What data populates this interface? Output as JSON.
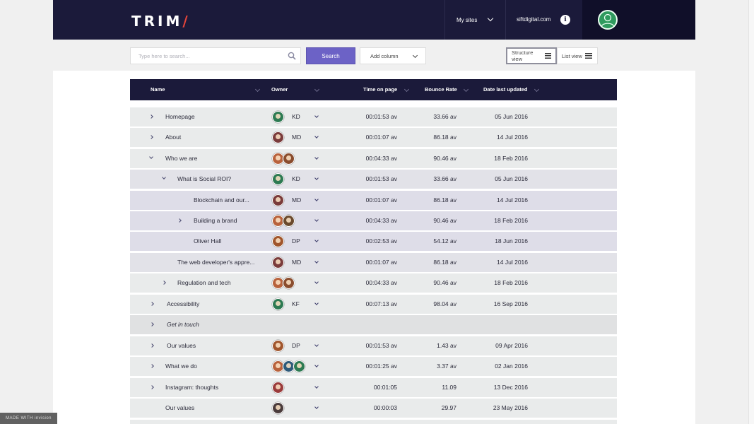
{
  "header": {
    "logo_text": "TRIM",
    "logo_slash": "/",
    "my_sites_label": "My sites",
    "site_domain": "siftdigital.com",
    "info_icon_glyph": "i"
  },
  "toolbar": {
    "search_placeholder": "Type here to search...",
    "search_button": "Search",
    "add_column_label": "Add column",
    "structure_view_label": "Structure view",
    "list_view_label": "List view"
  },
  "table": {
    "columns": {
      "name": "Name",
      "owner": "Owner",
      "time_on_page": "Time on page",
      "bounce_rate": "Bounce Rate",
      "date_last_updated": "Date last updated"
    },
    "rows": [
      {
        "name": "Homepage",
        "initials": "KD",
        "time": "00:01:53 av",
        "bounce": "33.66 av",
        "date": "05 Jun 2016"
      },
      {
        "name": "About",
        "initials": "MD",
        "time": "00:01:07 av",
        "bounce": "86.18 av",
        "date": "14 Jul 2016"
      },
      {
        "name": "Who we are",
        "initials": "",
        "time": "00:04:33 av",
        "bounce": "90.46 av",
        "date": "18 Feb 2016"
      },
      {
        "name": "What is Social ROI?",
        "initials": "KD",
        "time": "00:01:53 av",
        "bounce": "33.66 av",
        "date": "05 Jun 2016"
      },
      {
        "name": "Blockchain and our...",
        "initials": "MD",
        "time": "00:01:07 av",
        "bounce": "86.18 av",
        "date": "14 Jul 2016"
      },
      {
        "name": "Building a brand",
        "initials": "",
        "time": "00:04:33 av",
        "bounce": "90.46 av",
        "date": "18 Feb 2016"
      },
      {
        "name": "Oliver Hall",
        "initials": "DP",
        "time": "00:02:53 av",
        "bounce": "54.12 av",
        "date": "18 Jun 2016"
      },
      {
        "name": "The web developer's appre...",
        "initials": "MD",
        "time": "00:01:07 av",
        "bounce": "86.18 av",
        "date": "14 Jul 2016"
      },
      {
        "name": "Regulation and tech",
        "initials": "",
        "time": "00:04:33 av",
        "bounce": "90.46 av",
        "date": "18 Feb 2016"
      },
      {
        "name": "Accessibility",
        "initials": "KF",
        "time": "00:07:13 av",
        "bounce": "98.04 av",
        "date": "16 Sep 2016"
      },
      {
        "name": "Get in touch",
        "initials": "",
        "time": "",
        "bounce": "",
        "date": ""
      },
      {
        "name": "Our values",
        "initials": "DP",
        "time": "00:01:53 av",
        "bounce": "1.43 av",
        "date": "09 Apr 2016"
      },
      {
        "name": "What we do",
        "initials": "",
        "time": "00:01:25 av",
        "bounce": "3.37 av",
        "date": "02 Jan 2016"
      },
      {
        "name": "Instagram: thoughts",
        "initials": "",
        "time": "00:01:05",
        "bounce": "11.09",
        "date": "13 Dec 2016"
      },
      {
        "name": "Our values",
        "initials": "",
        "time": "00:00:03",
        "bounce": "29.97",
        "date": "23 May 2016"
      }
    ]
  },
  "footer": {
    "badge_text": "MADE WITH invision"
  },
  "colors": {
    "nav_bg": "#1b1a3a",
    "accent": "#6c62c6",
    "avatar_green": "#2f9a5e",
    "logo_slash": "#e0443a"
  }
}
